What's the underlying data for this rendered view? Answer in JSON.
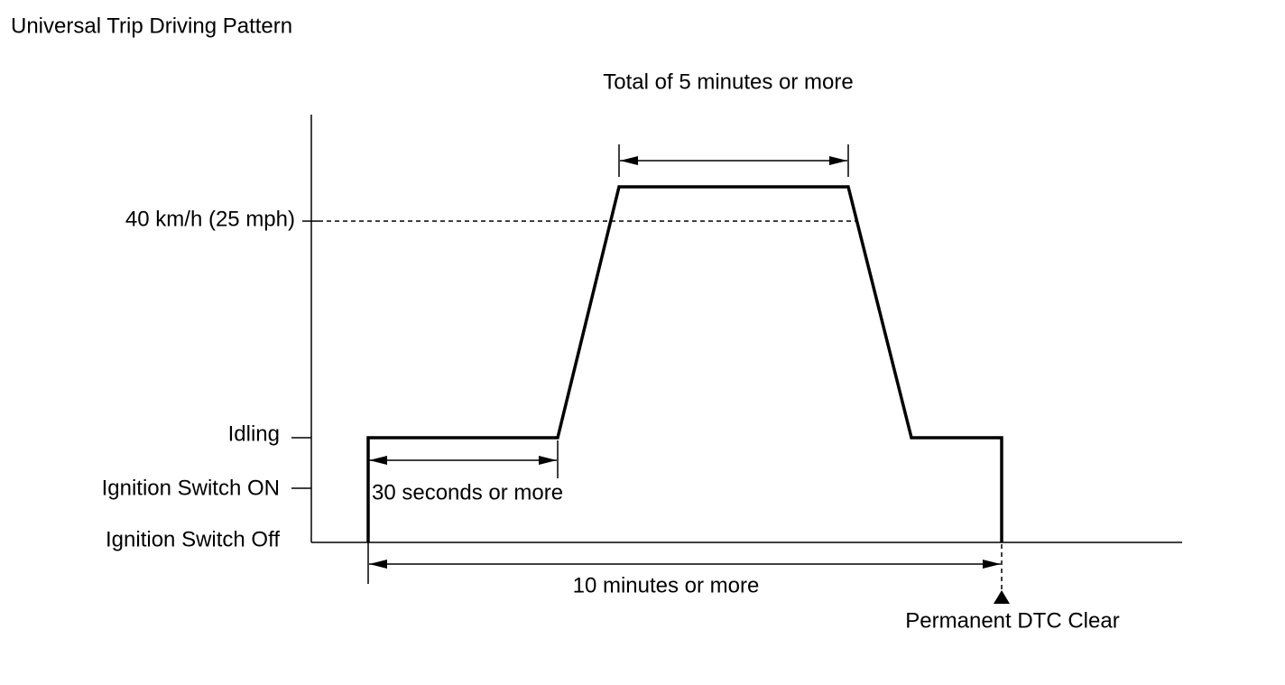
{
  "title": "Universal Trip Driving Pattern",
  "levels": [
    "40 km/h (25 mph)",
    "Idling",
    "Ignition Switch ON",
    "Ignition Switch Off"
  ],
  "annotations": [
    "Total of 5 minutes or more",
    "30 seconds or more",
    "10 minutes or more",
    "Permanent DTC Clear"
  ]
}
